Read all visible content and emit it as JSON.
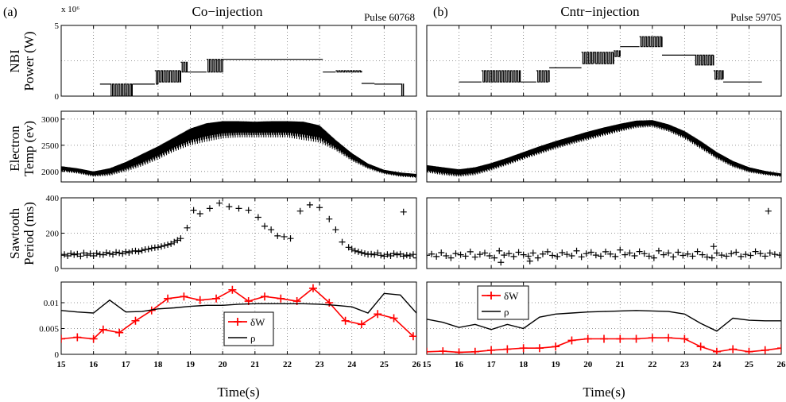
{
  "panels": {
    "left": {
      "label": "(a)",
      "title": "Co−injection",
      "pulse": "Pulse 60768"
    },
    "right": {
      "label": "(b)",
      "title": "Cntr−injection",
      "pulse": "Pulse 59705"
    }
  },
  "rows": [
    {
      "ylabel1": "NBI",
      "ylabel2": "Power (W)",
      "exponent": "x 10⁶"
    },
    {
      "ylabel1": "Electron",
      "ylabel2": "Temp (ev)"
    },
    {
      "ylabel1": "Sawtooth",
      "ylabel2": "Period (ms)"
    },
    {}
  ],
  "xlabel": "Time(s)",
  "legend": {
    "dw": "δW",
    "rho": "ρ"
  },
  "colors": {
    "red": "#ff0000",
    "black": "#000000",
    "grid": "#777777"
  },
  "chart_data": [
    {
      "id": "a-nbi",
      "type": "line",
      "xlim": [
        15,
        26
      ],
      "ylim": [
        0,
        5
      ],
      "yticks": [
        0,
        5
      ],
      "xticks": [
        15,
        16,
        17,
        18,
        19,
        20,
        21,
        22,
        23,
        24,
        25,
        26
      ],
      "series": [
        {
          "kind": "step-modulated",
          "segments": [
            [
              16.2,
              16.5,
              0.85,
              0.85
            ],
            [
              16.5,
              17.2,
              0.0,
              0.85
            ],
            [
              17.2,
              17.9,
              0.85,
              0.85
            ],
            [
              17.9,
              18.0,
              0.85,
              1.8
            ],
            [
              18.0,
              18.7,
              1.0,
              1.8
            ],
            [
              18.7,
              18.9,
              1.7,
              2.4
            ],
            [
              18.9,
              19.5,
              1.7,
              1.7
            ],
            [
              19.5,
              20.0,
              1.7,
              2.6
            ],
            [
              20.0,
              22.2,
              2.6,
              2.6
            ],
            [
              22.2,
              23.1,
              2.6,
              2.6
            ],
            [
              23.1,
              23.5,
              1.7,
              1.7
            ],
            [
              23.5,
              24.3,
              1.7,
              1.8
            ],
            [
              24.3,
              24.7,
              0.9,
              0.9
            ],
            [
              24.7,
              25.5,
              0.85,
              0.85
            ],
            [
              25.5,
              25.6,
              0.0,
              0.85
            ]
          ]
        }
      ]
    },
    {
      "id": "b-nbi",
      "type": "line",
      "xlim": [
        15,
        26
      ],
      "ylim": [
        0,
        5
      ],
      "yticks": [],
      "xticks": [
        15,
        16,
        17,
        18,
        19,
        20,
        21,
        22,
        23,
        24,
        25,
        26
      ],
      "series": [
        {
          "kind": "step-modulated",
          "segments": [
            [
              16.0,
              16.7,
              1.0,
              1.0
            ],
            [
              16.7,
              17.9,
              1.0,
              1.8
            ],
            [
              17.9,
              18.4,
              1.0,
              1.0
            ],
            [
              18.4,
              18.8,
              1.0,
              1.8
            ],
            [
              18.8,
              19.8,
              2.0,
              2.0
            ],
            [
              19.8,
              20.2,
              2.3,
              3.1
            ],
            [
              20.2,
              20.8,
              2.3,
              3.1
            ],
            [
              20.8,
              21.0,
              2.8,
              3.2
            ],
            [
              21.0,
              21.6,
              3.5,
              3.5
            ],
            [
              21.6,
              22.3,
              3.5,
              4.2
            ],
            [
              22.3,
              23.3,
              2.9,
              2.9
            ],
            [
              23.3,
              23.9,
              2.2,
              2.9
            ],
            [
              23.9,
              24.2,
              1.2,
              1.8
            ],
            [
              24.2,
              25.0,
              1.0,
              1.0
            ],
            [
              25.0,
              25.4,
              1.0,
              1.0
            ]
          ]
        }
      ]
    },
    {
      "id": "a-te",
      "type": "line",
      "xlim": [
        15,
        26
      ],
      "ylim": [
        1800,
        3150
      ],
      "yticks": [
        2000,
        2500,
        3000
      ],
      "xticks": [
        15,
        16,
        17,
        18,
        19,
        20,
        21,
        22,
        23,
        24,
        25,
        26
      ],
      "series": [
        {
          "kind": "envelope",
          "x": [
            15.0,
            15.5,
            16.0,
            16.5,
            17.0,
            17.5,
            18.0,
            18.5,
            19.0,
            19.5,
            20.0,
            20.5,
            21.0,
            21.5,
            22.0,
            22.5,
            23.0,
            23.5,
            24.0,
            24.5,
            25.0,
            25.5,
            26.0
          ],
          "lo": [
            2000,
            1960,
            1900,
            1920,
            2000,
            2100,
            2230,
            2380,
            2500,
            2570,
            2630,
            2650,
            2650,
            2650,
            2650,
            2600,
            2550,
            2400,
            2200,
            2050,
            1950,
            1900,
            1880
          ],
          "hi": [
            2100,
            2060,
            2000,
            2060,
            2180,
            2330,
            2480,
            2650,
            2820,
            2920,
            2960,
            2960,
            2950,
            2960,
            2960,
            2950,
            2880,
            2600,
            2350,
            2150,
            2030,
            1980,
            1950
          ]
        }
      ]
    },
    {
      "id": "b-te",
      "type": "line",
      "xlim": [
        15,
        26
      ],
      "ylim": [
        1800,
        3150
      ],
      "yticks": [],
      "xticks": [
        15,
        16,
        17,
        18,
        19,
        20,
        21,
        22,
        23,
        24,
        25,
        26
      ],
      "series": [
        {
          "kind": "envelope",
          "x": [
            15.0,
            15.5,
            16.0,
            16.5,
            17.0,
            17.5,
            18.0,
            18.5,
            19.0,
            19.5,
            20.0,
            20.5,
            21.0,
            21.5,
            22.0,
            22.5,
            23.0,
            23.5,
            24.0,
            24.5,
            25.0,
            25.5,
            26.0
          ],
          "lo": [
            1980,
            1930,
            1900,
            1930,
            2020,
            2120,
            2230,
            2330,
            2430,
            2520,
            2600,
            2680,
            2760,
            2830,
            2850,
            2760,
            2620,
            2430,
            2240,
            2080,
            1980,
            1930,
            1900
          ],
          "hi": [
            2120,
            2080,
            2040,
            2080,
            2160,
            2260,
            2370,
            2480,
            2580,
            2670,
            2760,
            2840,
            2910,
            2970,
            2980,
            2900,
            2770,
            2580,
            2370,
            2200,
            2080,
            2010,
            1960
          ]
        }
      ]
    },
    {
      "id": "a-saw",
      "type": "scatter",
      "xlim": [
        15,
        26
      ],
      "ylim": [
        0,
        400
      ],
      "yticks": [
        0,
        200,
        400
      ],
      "xticks": [
        15,
        16,
        17,
        18,
        19,
        20,
        21,
        22,
        23,
        24,
        25,
        26
      ],
      "series": [
        {
          "kind": "plus",
          "x": [
            15.0,
            15.1,
            15.2,
            15.3,
            15.4,
            15.5,
            15.6,
            15.7,
            15.8,
            15.9,
            16.0,
            16.1,
            16.2,
            16.3,
            16.4,
            16.5,
            16.6,
            16.7,
            16.8,
            16.9,
            17.0,
            17.1,
            17.2,
            17.3,
            17.4,
            17.5,
            17.6,
            17.7,
            17.8,
            17.9,
            18.0,
            18.1,
            18.2,
            18.3,
            18.4,
            18.5,
            18.6,
            18.7,
            18.9,
            19.1,
            19.3,
            19.6,
            19.9,
            20.2,
            20.5,
            20.8,
            21.1,
            21.3,
            21.5,
            21.7,
            21.9,
            22.1,
            22.4,
            22.7,
            23.0,
            23.3,
            23.5,
            23.7,
            23.9,
            24.0,
            24.1,
            24.2,
            24.3,
            24.4,
            24.5,
            24.6,
            24.7,
            24.8,
            24.9,
            25.0,
            25.1,
            25.2,
            25.3,
            25.4,
            25.5,
            25.6,
            25.7,
            25.8,
            25.9,
            26.0,
            25.6
          ],
          "y": [
            75,
            80,
            72,
            85,
            78,
            82,
            70,
            88,
            76,
            84,
            72,
            86,
            80,
            78,
            90,
            85,
            80,
            92,
            88,
            84,
            95,
            90,
            98,
            100,
            96,
            102,
            108,
            110,
            115,
            118,
            120,
            125,
            130,
            135,
            140,
            150,
            160,
            170,
            230,
            330,
            310,
            340,
            370,
            350,
            340,
            330,
            290,
            240,
            220,
            185,
            180,
            170,
            325,
            360,
            345,
            280,
            220,
            150,
            120,
            110,
            100,
            95,
            90,
            85,
            80,
            82,
            78,
            88,
            75,
            70,
            80,
            72,
            85,
            78,
            82,
            70,
            76,
            72,
            80,
            60,
            320
          ]
        }
      ]
    },
    {
      "id": "b-saw",
      "type": "scatter",
      "xlim": [
        15,
        26
      ],
      "ylim": [
        0,
        400
      ],
      "yticks": [],
      "xticks": [
        15,
        16,
        17,
        18,
        19,
        20,
        21,
        22,
        23,
        24,
        25,
        26
      ],
      "series": [
        {
          "kind": "plus",
          "x": [
            15.0,
            15.15,
            15.3,
            15.45,
            15.6,
            15.75,
            15.9,
            16.05,
            16.2,
            16.35,
            16.5,
            16.65,
            16.8,
            16.95,
            17.1,
            17.25,
            17.4,
            17.55,
            17.7,
            17.85,
            18.0,
            18.15,
            18.3,
            18.45,
            18.6,
            18.75,
            18.9,
            19.05,
            19.2,
            19.35,
            19.5,
            19.65,
            19.8,
            19.95,
            20.1,
            20.25,
            20.4,
            20.55,
            20.7,
            20.85,
            21.0,
            21.15,
            21.3,
            21.45,
            21.6,
            21.75,
            21.9,
            22.05,
            22.2,
            22.35,
            22.5,
            22.65,
            22.8,
            22.95,
            23.1,
            23.25,
            23.4,
            23.55,
            23.7,
            23.85,
            24.0,
            24.15,
            24.3,
            24.45,
            24.6,
            24.75,
            24.9,
            25.05,
            25.2,
            25.35,
            25.5,
            25.65,
            25.8,
            25.95,
            17.3,
            18.2,
            23.9,
            25.6
          ],
          "y": [
            75,
            82,
            68,
            90,
            72,
            60,
            85,
            78,
            70,
            95,
            65,
            80,
            88,
            72,
            60,
            100,
            76,
            85,
            68,
            92,
            78,
            70,
            88,
            60,
            82,
            95,
            74,
            68,
            90,
            80,
            72,
            100,
            66,
            84,
            92,
            76,
            70,
            95,
            82,
            68,
            105,
            78,
            88,
            72,
            96,
            84,
            70,
            60,
            100,
            78,
            88,
            66,
            92,
            74,
            82,
            70,
            96,
            78,
            65,
            60,
            88,
            76,
            70,
            84,
            92,
            68,
            80,
            74,
            96,
            85,
            70,
            88,
            80,
            76,
            35,
            42,
            125,
            325
          ]
        }
      ]
    },
    {
      "id": "a-dw",
      "type": "line",
      "xlim": [
        15,
        26
      ],
      "ylim": [
        0,
        0.014
      ],
      "yticks": [
        0,
        0.005,
        0.01
      ],
      "xticks": [
        15,
        16,
        17,
        18,
        19,
        20,
        21,
        22,
        23,
        24,
        25,
        26
      ],
      "series": [
        {
          "name": "δW",
          "color": "#ff0000",
          "marker": "plus",
          "x": [
            15.0,
            15.5,
            16.0,
            16.3,
            16.8,
            17.3,
            17.8,
            18.3,
            18.8,
            19.3,
            19.8,
            20.3,
            20.8,
            21.3,
            21.8,
            22.3,
            22.8,
            23.3,
            23.8,
            24.3,
            24.8,
            25.3,
            25.9
          ],
          "y": [
            0.003,
            0.0033,
            0.003,
            0.0048,
            0.0042,
            0.0065,
            0.0085,
            0.0108,
            0.0112,
            0.0105,
            0.0108,
            0.0125,
            0.0103,
            0.0112,
            0.0108,
            0.0103,
            0.0128,
            0.01,
            0.0065,
            0.0058,
            0.0078,
            0.007,
            0.0035
          ]
        },
        {
          "name": "ρ",
          "color": "#000000",
          "x": [
            15.0,
            15.5,
            16.0,
            16.5,
            17.0,
            17.5,
            18.0,
            18.5,
            19.0,
            19.5,
            20.0,
            20.5,
            21.0,
            21.5,
            22.0,
            22.5,
            23.0,
            23.5,
            24.0,
            24.5,
            25.0,
            25.5,
            26.0
          ],
          "y": [
            0.0085,
            0.0082,
            0.008,
            0.0105,
            0.0082,
            0.0083,
            0.0088,
            0.009,
            0.0093,
            0.0095,
            0.0095,
            0.0097,
            0.0098,
            0.0098,
            0.0098,
            0.0098,
            0.0097,
            0.0095,
            0.0092,
            0.008,
            0.0118,
            0.0115,
            0.008
          ]
        }
      ]
    },
    {
      "id": "b-dw",
      "type": "line",
      "xlim": [
        15,
        26
      ],
      "ylim": [
        0,
        0.014
      ],
      "yticks": [],
      "xticks": [
        15,
        16,
        17,
        18,
        19,
        20,
        21,
        22,
        23,
        24,
        25,
        26
      ],
      "series": [
        {
          "name": "δW",
          "color": "#ff0000",
          "marker": "plus",
          "x": [
            15.0,
            15.5,
            16.0,
            16.5,
            17.0,
            17.5,
            18.0,
            18.5,
            19.0,
            19.5,
            20.0,
            20.5,
            21.0,
            21.5,
            22.0,
            22.5,
            23.0,
            23.5,
            24.0,
            24.5,
            25.0,
            25.5,
            26.0
          ],
          "y": [
            0.0005,
            0.0006,
            0.0004,
            0.0005,
            0.0008,
            0.001,
            0.0012,
            0.0012,
            0.0015,
            0.0027,
            0.003,
            0.003,
            0.003,
            0.003,
            0.0032,
            0.0032,
            0.003,
            0.0015,
            0.0005,
            0.001,
            0.0005,
            0.0008,
            0.0012
          ]
        },
        {
          "name": "ρ",
          "color": "#000000",
          "x": [
            15.0,
            15.5,
            16.0,
            16.5,
            17.0,
            17.5,
            18.0,
            18.5,
            19.0,
            19.5,
            20.0,
            20.5,
            21.0,
            21.5,
            22.0,
            22.5,
            23.0,
            23.5,
            24.0,
            24.5,
            25.0,
            25.5,
            26.0
          ],
          "y": [
            0.0068,
            0.0062,
            0.0052,
            0.0058,
            0.0048,
            0.0058,
            0.005,
            0.0072,
            0.0078,
            0.008,
            0.0082,
            0.0083,
            0.0084,
            0.0085,
            0.0084,
            0.0083,
            0.0078,
            0.006,
            0.0045,
            0.007,
            0.0066,
            0.0065,
            0.0065
          ]
        }
      ]
    }
  ]
}
